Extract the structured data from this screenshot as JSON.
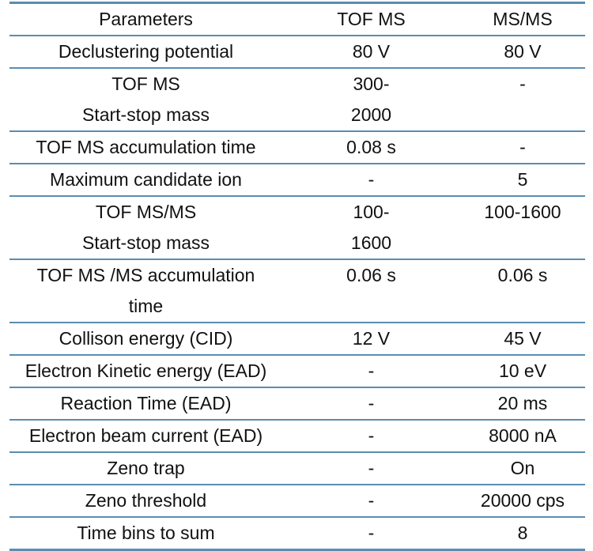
{
  "header": [
    "Parameters",
    "TOF MS",
    "MS/MS"
  ],
  "rows": [
    [
      [
        "Declustering potential"
      ],
      [
        "80 V"
      ],
      [
        "80 V"
      ]
    ],
    [
      [
        "TOF MS",
        "Start-stop mass"
      ],
      [
        "300-",
        "2000"
      ],
      [
        "-"
      ]
    ],
    [
      [
        "TOF MS accumulation time"
      ],
      [
        "0.08 s"
      ],
      [
        "-"
      ]
    ],
    [
      [
        "Maximum candidate ion"
      ],
      [
        "-"
      ],
      [
        "5"
      ]
    ],
    [
      [
        "TOF MS/MS",
        "Start-stop mass"
      ],
      [
        "100-",
        "1600"
      ],
      [
        "100-1600"
      ]
    ],
    [
      [
        "TOF MS /MS accumulation",
        "time"
      ],
      [
        "0.06 s"
      ],
      [
        "0.06 s"
      ]
    ],
    [
      [
        "Collison energy (CID)"
      ],
      [
        "12 V"
      ],
      [
        "45 V"
      ]
    ],
    [
      [
        "Electron Kinetic energy (EAD)"
      ],
      [
        "-"
      ],
      [
        "10 eV"
      ]
    ],
    [
      [
        "Reaction Time (EAD)"
      ],
      [
        "-"
      ],
      [
        "20 ms"
      ]
    ],
    [
      [
        "Electron beam current (EAD)"
      ],
      [
        "-"
      ],
      [
        "8000 nA"
      ]
    ],
    [
      [
        "Zeno trap"
      ],
      [
        "-"
      ],
      [
        "On"
      ]
    ],
    [
      [
        "Zeno threshold"
      ],
      [
        "-"
      ],
      [
        "20000 cps"
      ]
    ],
    [
      [
        "Time bins to sum"
      ],
      [
        "-"
      ],
      [
        "8"
      ]
    ]
  ],
  "colors": {
    "rule": "#5a8db0"
  }
}
